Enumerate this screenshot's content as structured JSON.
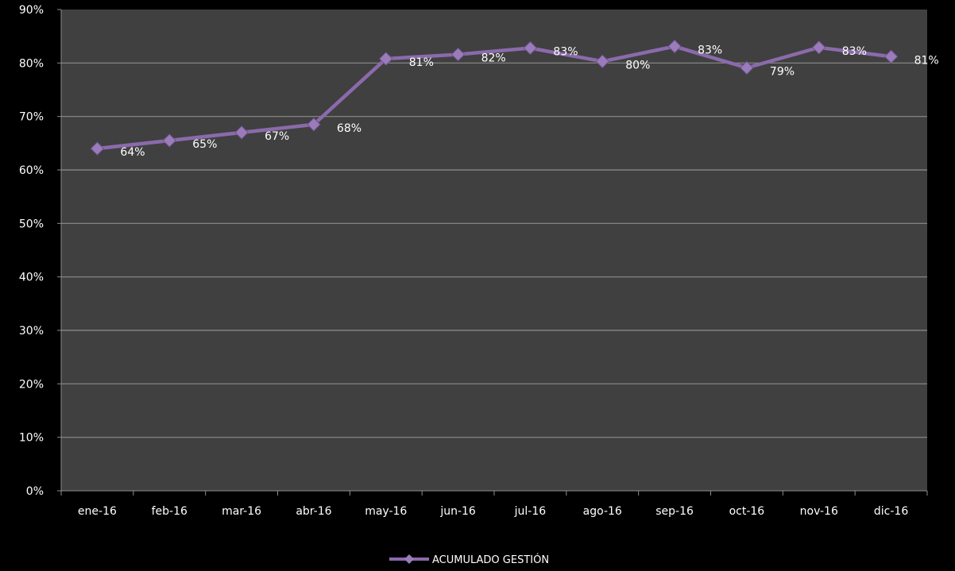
{
  "chart_data": {
    "type": "line",
    "categories": [
      "ene-16",
      "feb-16",
      "mar-16",
      "abr-16",
      "may-16",
      "jun-16",
      "jul-16",
      "ago-16",
      "sep-16",
      "oct-16",
      "nov-16",
      "dic-16"
    ],
    "series": [
      {
        "name": "ACUMULADO GESTIÓN",
        "values": [
          64,
          65.5,
          67,
          68.5,
          80.8,
          81.6,
          82.8,
          80.3,
          83.1,
          79.1,
          82.9,
          81.2
        ],
        "data_labels": [
          "64%",
          "65%",
          "67%",
          "68%",
          "81%",
          "82%",
          "83%",
          "80%",
          "83%",
          "79%",
          "83%",
          "81%"
        ],
        "color": "#8b6aac"
      }
    ],
    "y_ticks": [
      "0%",
      "10%",
      "20%",
      "30%",
      "40%",
      "50%",
      "60%",
      "70%",
      "80%",
      "90%"
    ],
    "ylim": [
      0,
      90
    ],
    "y_step": 10,
    "grid": true,
    "legend_position": "bottom",
    "colors": {
      "background": "#000000",
      "plot_area": "#404040",
      "gridline": "#8c8c8c",
      "text": "#ffffff",
      "line": "#8b6aac",
      "marker": "#9a7cbb"
    }
  }
}
